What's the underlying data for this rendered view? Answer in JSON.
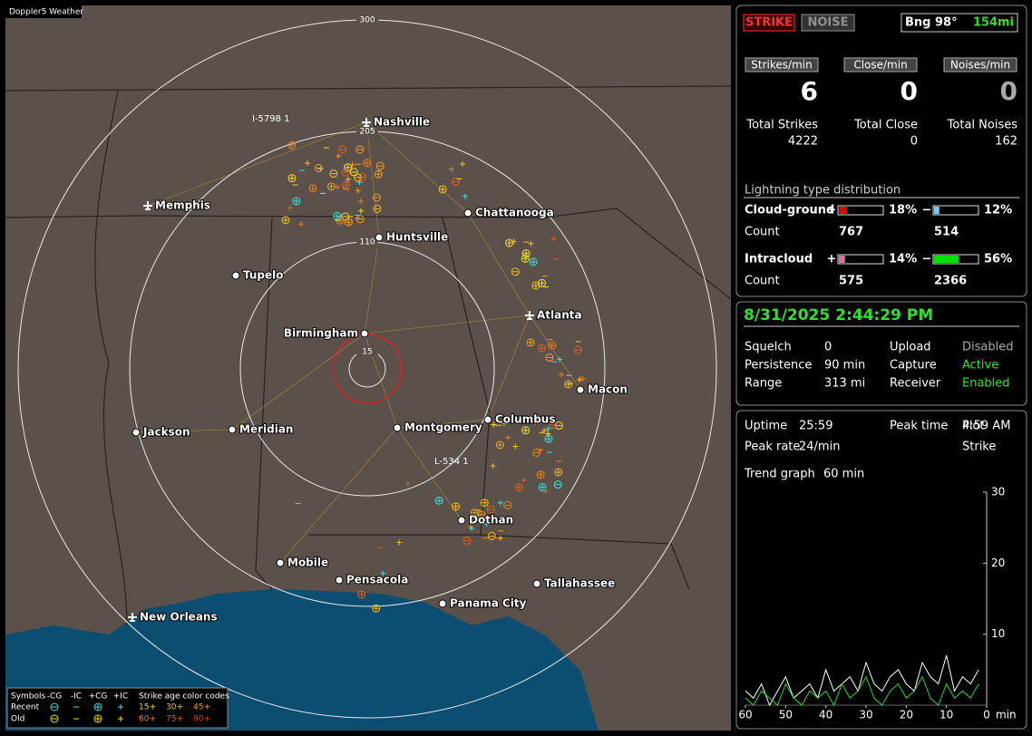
{
  "map": {
    "title": "Doppler5 Weather",
    "ring_labels": [
      300,
      205,
      110,
      15
    ],
    "cities": [
      "Nashville",
      "Memphis",
      "Chattanooga",
      "Huntsville",
      "Tupelo",
      "Atlanta",
      "Birmingham",
      "Macon",
      "Jackson",
      "Meridian",
      "Montgomery",
      "Columbus",
      "Dothan",
      "Mobile",
      "Pensacola",
      "Tallahassee",
      "Panama City",
      "New Orleans"
    ],
    "track_labels": [
      "I-5798 1",
      "L-534 1"
    ],
    "legend": {
      "symbols": "Symbols",
      "types": [
        "-CG",
        "-IC",
        "+CG",
        "+IC"
      ],
      "age_title": "Strike age color codes",
      "rows": [
        {
          "name": "Recent",
          "ages": [
            "15+",
            "30+",
            "45+"
          ]
        },
        {
          "name": "Old",
          "ages": [
            "60+",
            "75+",
            "90+"
          ]
        }
      ]
    }
  },
  "status": {
    "modes": [
      "STRIKE",
      "NOISE"
    ],
    "bearing": "Bng 98°",
    "distance": "154mi",
    "rates": [
      {
        "label": "Strikes/min",
        "value": 6
      },
      {
        "label": "Close/min",
        "value": 0
      },
      {
        "label": "Noises/min",
        "value": 0
      }
    ],
    "totals": [
      {
        "label": "Total Strikes",
        "value": 4222
      },
      {
        "label": "Total Close",
        "value": 0
      },
      {
        "label": "Total Noises",
        "value": 162
      }
    ],
    "distribution": {
      "title": "Lightning type distribution",
      "count_label": "Count",
      "rows": [
        {
          "name": "Cloud-ground",
          "parts": [
            {
              "sign": "+",
              "value": 18,
              "label": "18%",
              "count": 767,
              "color": "#e00000"
            },
            {
              "sign": "−",
              "value": 12,
              "label": "12%",
              "count": 514,
              "color": "#7ac8f0"
            }
          ]
        },
        {
          "name": "Intracloud",
          "parts": [
            {
              "sign": "+",
              "value": 14,
              "label": "14%",
              "count": 575,
              "color": "#e070a0"
            },
            {
              "sign": "−",
              "value": 56,
              "label": "56%",
              "count": 2366,
              "color": "#00e000"
            }
          ]
        }
      ]
    }
  },
  "settings": {
    "datetime": "8/31/2025 2:44:29 PM",
    "items": [
      {
        "label": "Squelch",
        "value": 0
      },
      {
        "label": "Upload",
        "value": "Disabled"
      },
      {
        "label": "Persistence",
        "value": "90 min"
      },
      {
        "label": "Capture",
        "value": "Active"
      },
      {
        "label": "Range",
        "value": "313 mi"
      },
      {
        "label": "Receiver",
        "value": "Enabled"
      }
    ]
  },
  "stats": {
    "items": [
      {
        "label": "Uptime",
        "value": "25:59"
      },
      {
        "label": "Peak time",
        "value": "4:59 AM"
      },
      {
        "label": "Plot",
        "value": "Strike"
      },
      {
        "label": "Peak rate",
        "value": "24/min"
      },
      {
        "label": "Trend graph",
        "value": "60 min"
      }
    ],
    "trend": {
      "ylim": [
        0,
        30
      ],
      "yticks": [
        10,
        20,
        30
      ],
      "xlim": [
        60,
        0
      ],
      "xticks": [
        60,
        50,
        40,
        30,
        20,
        10,
        0
      ],
      "x_unit": "min",
      "x": [
        60,
        58,
        56,
        54,
        52,
        50,
        48,
        46,
        44,
        42,
        40,
        38,
        36,
        34,
        32,
        30,
        28,
        26,
        24,
        22,
        20,
        18,
        16,
        14,
        12,
        10,
        8,
        6,
        4,
        2
      ],
      "series": [
        {
          "color": "#ffffff",
          "values": [
            2,
            1,
            3,
            0,
            2,
            4,
            1,
            2,
            3,
            1,
            5,
            2,
            3,
            4,
            2,
            6,
            3,
            2,
            4,
            5,
            3,
            2,
            6,
            4,
            3,
            7,
            2,
            4,
            3,
            5
          ]
        },
        {
          "color": "#30d030",
          "values": [
            1,
            0,
            2,
            1,
            0,
            3,
            1,
            0,
            2,
            1,
            2,
            0,
            3,
            1,
            2,
            4,
            1,
            0,
            2,
            3,
            1,
            2,
            4,
            1,
            0,
            3,
            1,
            2,
            1,
            3
          ]
        }
      ]
    }
  }
}
